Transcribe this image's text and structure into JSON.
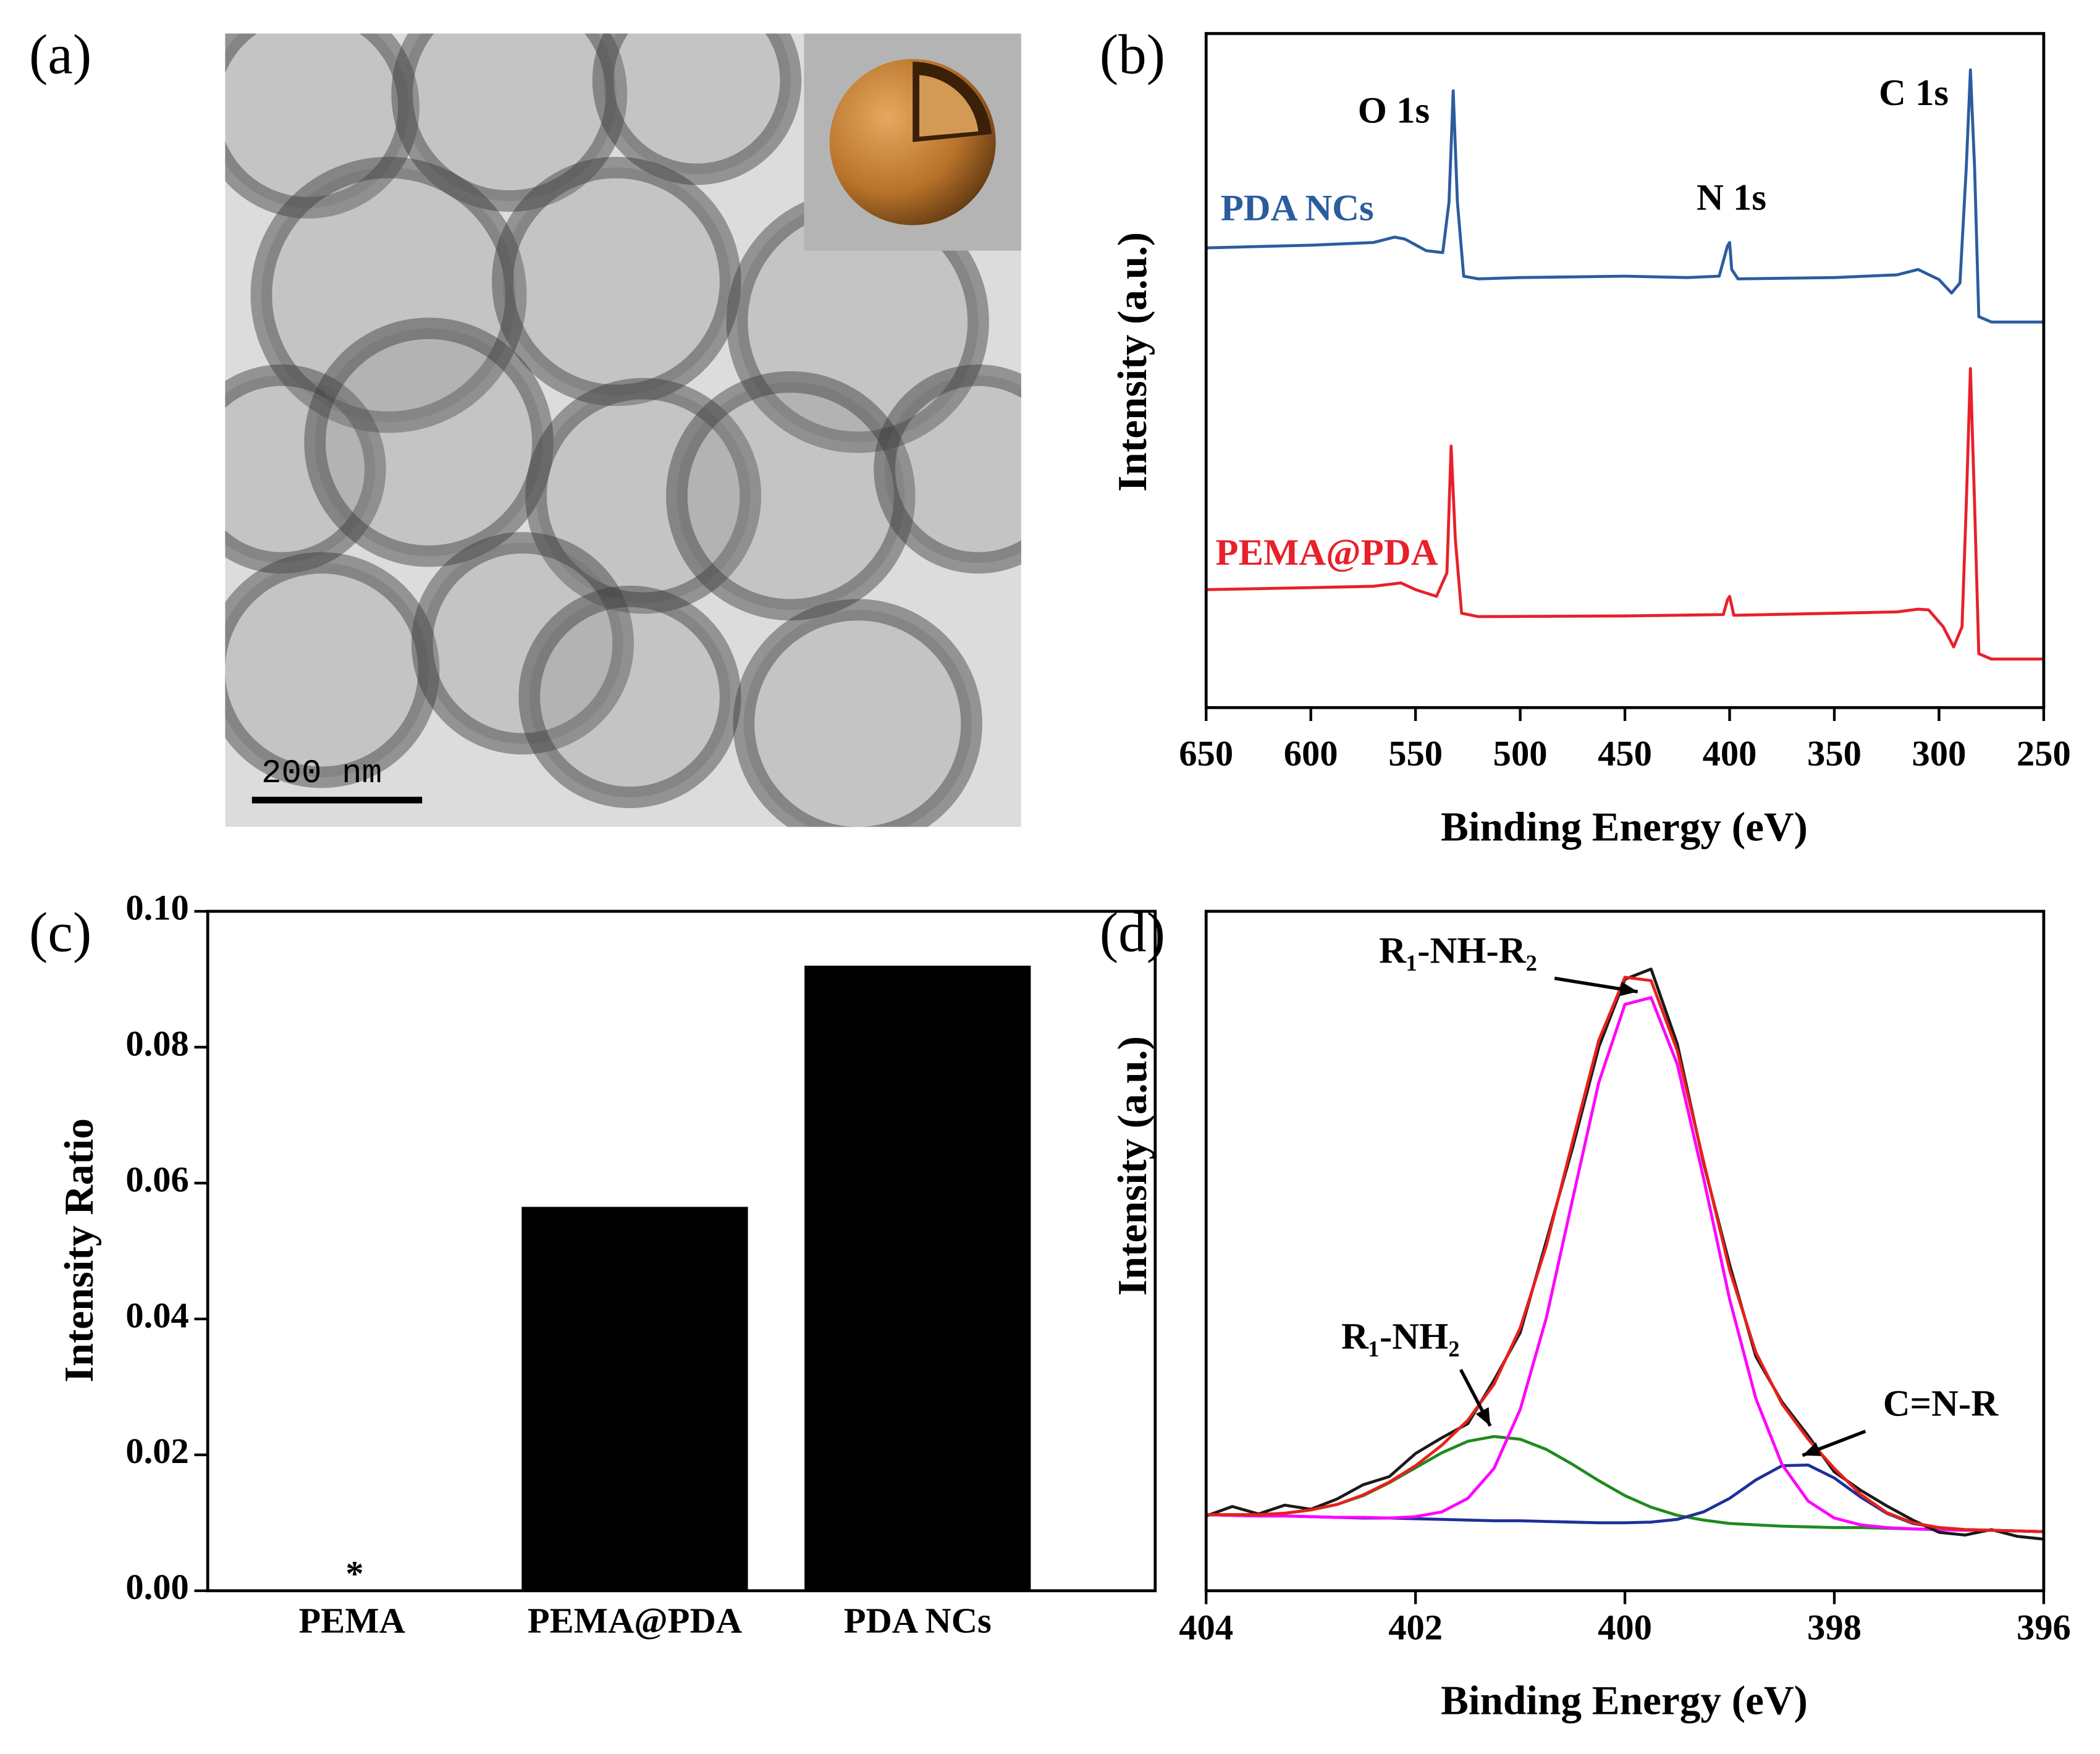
{
  "image_panel": {
    "label": "(a)",
    "scale_bar": "200 nm"
  },
  "chart_data": [
    {
      "type": "line",
      "panel_label": "(b)",
      "x_label": "Binding Energy (eV)",
      "y_label": "Intensity (a.u.)",
      "xlim": [
        650,
        250
      ],
      "xticks": [
        650,
        600,
        550,
        500,
        450,
        400,
        350,
        300,
        250
      ],
      "ylim": [
        0,
        100
      ],
      "annotations": [
        "O 1s",
        "N 1s",
        "C 1s"
      ],
      "series": [
        {
          "name": "PDA NCs",
          "color": "#2b5c9e",
          "x": [
            650,
            600,
            570,
            560,
            555,
            545,
            537,
            534,
            532,
            530,
            527,
            520,
            500,
            450,
            420,
            405,
            401,
            400,
            399,
            396,
            350,
            320,
            310,
            300,
            294,
            290,
            287,
            285,
            283,
            281,
            275,
            250
          ],
          "values": [
            68.2,
            68.6,
            69,
            69.8,
            69.5,
            67.8,
            67.5,
            75,
            91.5,
            75,
            64,
            63.6,
            63.8,
            64,
            63.8,
            64,
            68.5,
            69,
            65,
            63.6,
            63.8,
            64.2,
            65,
            63.5,
            61.5,
            63,
            80,
            94.6,
            80,
            58,
            57.2,
            57.2
          ]
        },
        {
          "name": "PEMA@PDA",
          "color": "#e8202a",
          "x": [
            650,
            600,
            570,
            557,
            550,
            540,
            535,
            533,
            531,
            528,
            520,
            450,
            403,
            401,
            400,
            398,
            350,
            320,
            310,
            305,
            298,
            293,
            289,
            287,
            285,
            283,
            281,
            275,
            250
          ],
          "values": [
            17.5,
            17.8,
            18,
            18.5,
            17.5,
            16.5,
            20,
            38.8,
            25,
            14,
            13.5,
            13.6,
            13.8,
            16,
            16.5,
            13.7,
            14,
            14.2,
            14.6,
            14.5,
            12,
            9,
            12,
            30,
            50.3,
            30,
            8,
            7.2,
            7.2
          ]
        }
      ]
    },
    {
      "type": "bar",
      "panel_label": "(c)",
      "y_label": "Intensity Ratio",
      "categories": [
        "PEMA",
        "PEMA@PDA",
        "PDA NCs"
      ],
      "values": [
        0,
        0.0565,
        0.092
      ],
      "color": "#000000",
      "annotation": "*",
      "ylim": [
        0,
        0.1
      ],
      "yticks": [
        {
          "value": 0,
          "label": "0.00"
        },
        {
          "value": 0.02,
          "label": "0.02"
        },
        {
          "value": 0.04,
          "label": "0.04"
        },
        {
          "value": 0.06,
          "label": "0.06"
        },
        {
          "value": 0.08,
          "label": "0.08"
        },
        {
          "value": 0.1,
          "label": "0.10"
        }
      ]
    },
    {
      "type": "line",
      "panel_label": "(d)",
      "x_label": "Binding Energy (eV)",
      "y_label": "Intensity (a.u.)",
      "xlim": [
        404,
        396
      ],
      "xticks": [
        404,
        402,
        400,
        398,
        396
      ],
      "ylim": [
        0,
        100
      ],
      "annotations": [
        "R₁-NH-R₂",
        "R₁-NH₂",
        "C=N-R"
      ],
      "x": [
        404,
        403.75,
        403.5,
        403.25,
        403,
        402.75,
        402.5,
        402.25,
        402,
        401.75,
        401.5,
        401.25,
        401,
        400.75,
        400.5,
        400.25,
        400,
        399.75,
        399.5,
        399.25,
        399,
        398.75,
        398.5,
        398.25,
        398,
        397.75,
        397.5,
        397.25,
        397,
        396.75,
        396.5,
        396.25,
        396
      ],
      "series": [
        {
          "color": "#1f8a1f",
          "values": [
            11.2,
            11.2,
            11.2,
            11.4,
            11.9,
            12.7,
            14.0,
            15.9,
            18.1,
            20.3,
            22.0,
            22.7,
            22.3,
            20.8,
            18.6,
            16.2,
            14.0,
            12.3,
            11.1,
            10.4,
            9.9,
            9.7,
            9.5,
            9.4,
            9.3,
            9.3,
            9.2,
            9.1,
            9.0,
            8.9,
            8.9,
            8.8,
            8.7
          ]
        },
        {
          "color": "#1f2f9a",
          "values": [
            11.2,
            11.1,
            11.0,
            11.0,
            10.9,
            10.8,
            10.7,
            10.7,
            10.6,
            10.5,
            10.4,
            10.3,
            10.3,
            10.2,
            10.1,
            10.0,
            10.0,
            10.1,
            10.5,
            11.6,
            13.6,
            16.3,
            18.4,
            18.5,
            16.6,
            13.8,
            11.4,
            9.9,
            9.3,
            9.0,
            8.9,
            8.8,
            8.7
          ]
        },
        {
          "color": "#ff00ff",
          "values": [
            11.2,
            11.1,
            11.0,
            11.0,
            10.9,
            10.8,
            10.8,
            10.7,
            10.9,
            11.6,
            13.6,
            18.0,
            26.7,
            40.2,
            57.6,
            74.8,
            86.3,
            87.3,
            77.5,
            60.8,
            42.9,
            28.3,
            18.6,
            13.2,
            10.7,
            9.7,
            9.3,
            9.1,
            9.0,
            8.9,
            8.9,
            8.8,
            8.7
          ]
        },
        {
          "color": "#1a1a1a",
          "values": [
            11.0,
            12.4,
            11.3,
            12.6,
            12.0,
            13.5,
            15.6,
            16.8,
            20.2,
            22.5,
            24.6,
            31.0,
            38.0,
            51.5,
            65.2,
            80.0,
            90.0,
            91.5,
            80.5,
            63.0,
            48.0,
            34.5,
            27.8,
            22.8,
            17.5,
            14.8,
            12.5,
            10.4,
            8.6,
            8.2,
            9.0,
            8.0,
            7.6
          ]
        },
        {
          "color": "#e8201c",
          "values": [
            11.2,
            11.2,
            11.2,
            11.4,
            11.9,
            12.7,
            14.1,
            16.0,
            18.4,
            21.4,
            25.1,
            30.4,
            38.7,
            50.8,
            66.1,
            81.0,
            90.3,
            89.8,
            79.5,
            63.3,
            47.2,
            35.1,
            27.5,
            22.3,
            18.0,
            14.2,
            11.5,
            10.0,
            9.3,
            9.0,
            8.9,
            8.8,
            8.7
          ]
        }
      ]
    }
  ]
}
